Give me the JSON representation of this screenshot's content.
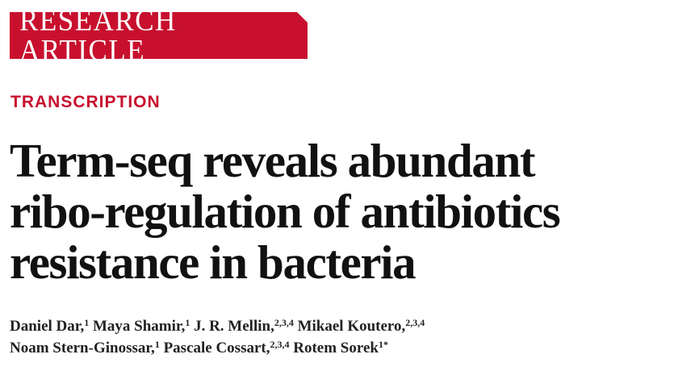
{
  "banner": {
    "label": "RESEARCH ARTICLE",
    "color": "#c8102e"
  },
  "section": {
    "label": "TRANSCRIPTION",
    "color": "#c8102e"
  },
  "title": {
    "lines": [
      "Term-seq reveals abundant",
      "ribo-regulation of antibiotics",
      "resistance in bacteria"
    ]
  },
  "authors": [
    {
      "name": "Daniel Dar,",
      "affil": "1"
    },
    {
      "name": "Maya Shamir,",
      "affil": "1"
    },
    {
      "name": "J. R. Mellin,",
      "affil": "2,3,4"
    },
    {
      "name": "Mikael Koutero,",
      "affil": "2,3,4"
    },
    {
      "name": "Noam Stern-Ginossar,",
      "affil": "1"
    },
    {
      "name": "Pascale Cossart,",
      "affil": "2,3,4"
    },
    {
      "name": "Rotem Sorek",
      "affil": "1*"
    }
  ]
}
